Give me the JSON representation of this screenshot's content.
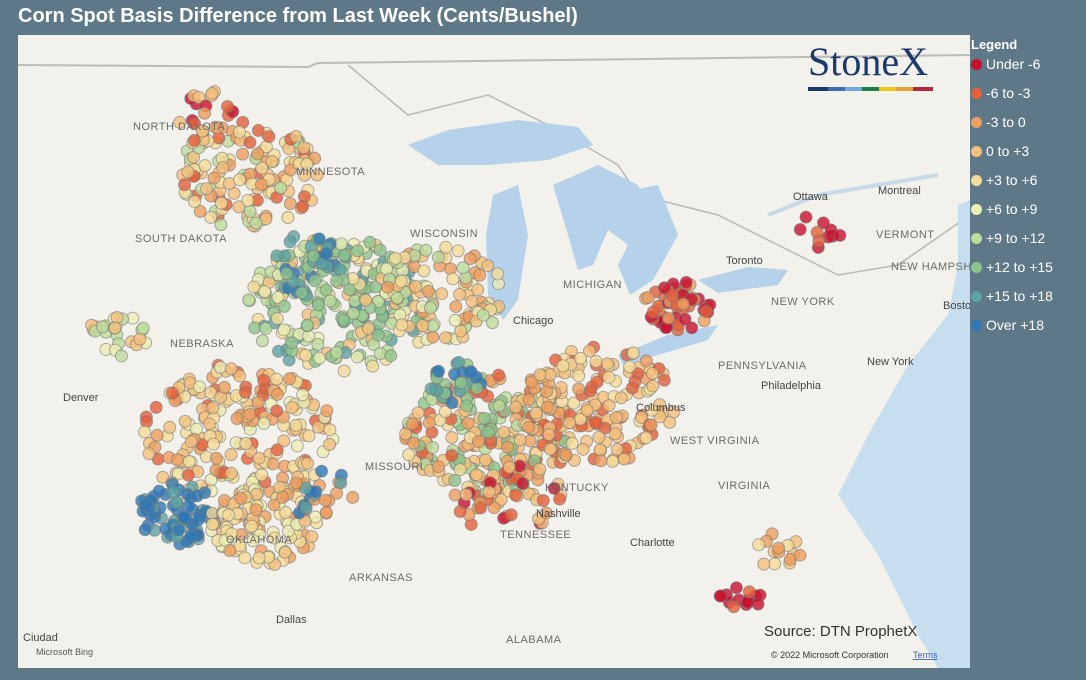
{
  "title": "Corn Spot Basis Difference from Last Week (Cents/Bushel)",
  "logo": "StoneX",
  "legend": {
    "title": "Legend",
    "items": [
      {
        "label": "Under -6",
        "color": "#c8102e"
      },
      {
        "label": "-6 to -3",
        "color": "#e4603c"
      },
      {
        "label": "-3 to 0",
        "color": "#ee9e5e"
      },
      {
        "label": "0 to +3",
        "color": "#f4bf7c"
      },
      {
        "label": "+3 to +6",
        "color": "#f6dc98"
      },
      {
        "label": "+6 to +9",
        "color": "#eceeb4"
      },
      {
        "label": "+9 to +12",
        "color": "#bcdc9c"
      },
      {
        "label": "+12 to +15",
        "color": "#8dc48c"
      },
      {
        "label": "+15 to +18",
        "color": "#5ea3a2"
      },
      {
        "label": "Over +18",
        "color": "#2e78b8"
      }
    ]
  },
  "map_labels": [
    "NORTH DAKOTA",
    "MINNESOTA",
    "SOUTH DAKOTA",
    "WISCONSIN",
    "MICHIGAN",
    "NEBRASKA",
    "Chicago",
    "Denver",
    "MISSOURI",
    "Columbus",
    "PENNSYLVANIA",
    "Philadelphia",
    "NEW YORK",
    "New York",
    "Ottawa",
    "Montreal",
    "Toronto",
    "VERMONT",
    "NEW HAMPSHIRE",
    "Boston",
    "WEST VIRGINIA",
    "VIRGINIA",
    "KENTUCKY",
    "Nashville",
    "TENNESSEE",
    "OKLAHOMA",
    "ARKANSAS",
    "Dallas",
    "ALABAMA",
    "Charlotte",
    "Ciudad"
  ],
  "source": "Source: DTN ProphetX",
  "copyright": "© 2022 Microsoft Corporation",
  "terms": "Terms",
  "attribution": "Microsoft Bing"
}
